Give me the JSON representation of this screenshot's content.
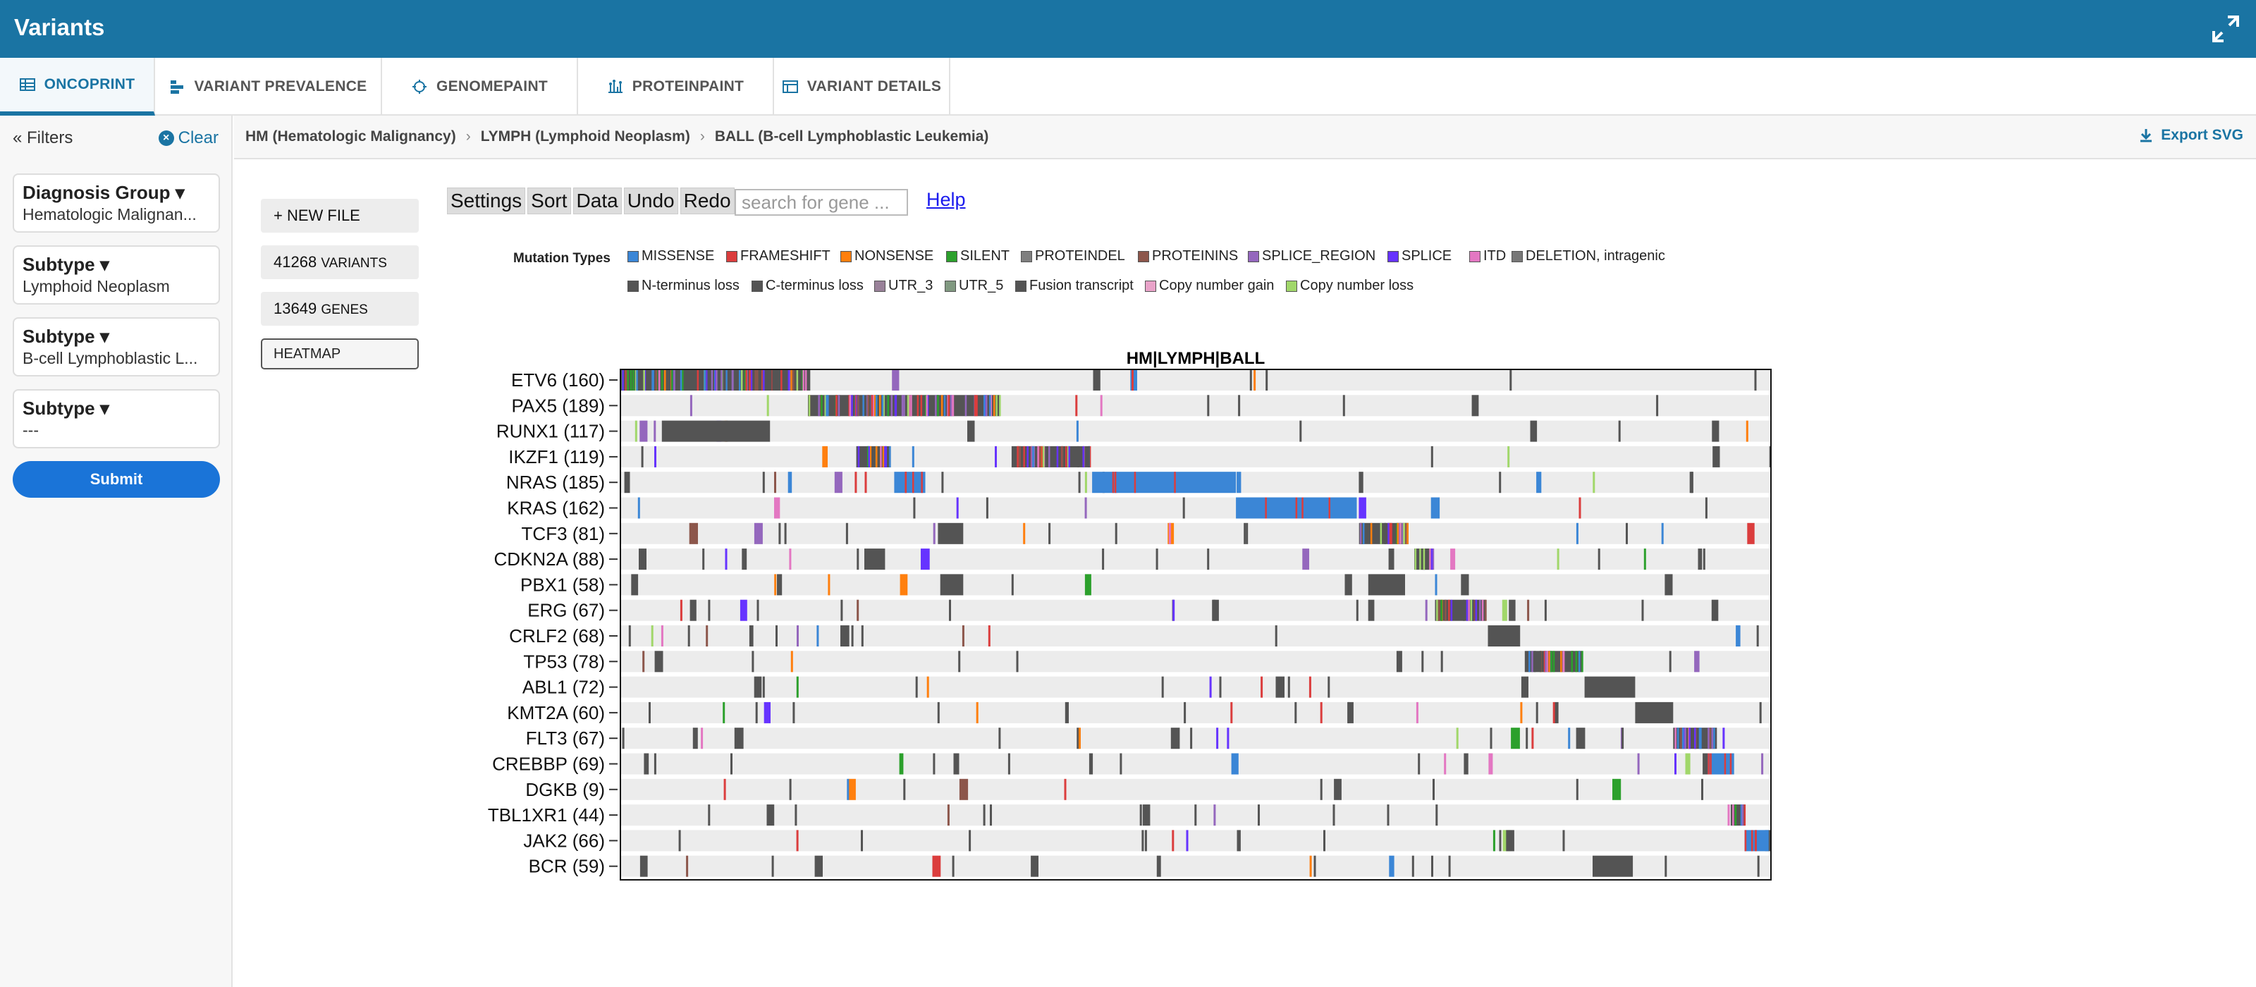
{
  "app": {
    "title": "Variants"
  },
  "tabs": [
    {
      "label": "ONCOPRINT",
      "icon": "table-icon"
    },
    {
      "label": "VARIANT PREVALENCE",
      "icon": "bar-icon"
    },
    {
      "label": "GENOMEPAINT",
      "icon": "genome-icon"
    },
    {
      "label": "PROTEINPAINT",
      "icon": "protein-icon"
    },
    {
      "label": "VARIANT DETAILS",
      "icon": "details-icon"
    }
  ],
  "sidebar": {
    "filters_label": "Filters",
    "clear_label": "Clear",
    "filters": [
      {
        "label": "Diagnosis Group",
        "value": "Hematologic Malignan..."
      },
      {
        "label": "Subtype",
        "value": "Lymphoid Neoplasm"
      },
      {
        "label": "Subtype",
        "value": "B-cell Lymphoblastic L..."
      },
      {
        "label": "Subtype",
        "value": "---"
      }
    ],
    "submit_label": "Submit"
  },
  "breadcrumb": {
    "items": [
      "HM (Hematologic Malignancy)",
      "LYMPH (Lymphoid Neoplasm)",
      "BALL (B-cell Lymphoblastic Leukemia)"
    ],
    "export_label": "Export SVG"
  },
  "panel": {
    "new_file": "+ NEW FILE",
    "variants_count": "41268",
    "variants_label": "VARIANTS",
    "genes_count": "13649",
    "genes_label": "GENES",
    "heatmap": "HEATMAP"
  },
  "toolbar": {
    "settings": "Settings",
    "sort": "Sort",
    "data": "Data",
    "undo": "Undo",
    "redo": "Redo",
    "search_placeholder": "search for gene ...",
    "help": "Help"
  },
  "legend": {
    "title": "Mutation Types",
    "items": [
      {
        "label": "MISSENSE",
        "color": "#3b86d6"
      },
      {
        "label": "FRAMESHIFT",
        "color": "#db3d3d"
      },
      {
        "label": "NONSENSE",
        "color": "#ff7f0e"
      },
      {
        "label": "SILENT",
        "color": "#2ca02c"
      },
      {
        "label": "PROTEINDEL",
        "color": "#7f7f7f"
      },
      {
        "label": "PROTEININS",
        "color": "#8c564b"
      },
      {
        "label": "SPLICE_REGION",
        "color": "#9467bd"
      },
      {
        "label": "SPLICE",
        "color": "#6633ff"
      },
      {
        "label": "ITD",
        "color": "#e377c2"
      },
      {
        "label": "DELETION, intragenic",
        "color": "#777777"
      },
      {
        "label": "N-terminus loss",
        "color": "#545454"
      },
      {
        "label": "C-terminus loss",
        "color": "#545454"
      },
      {
        "label": "UTR_3",
        "color": "#998199"
      },
      {
        "label": "UTR_5",
        "color": "#819981"
      },
      {
        "label": "Fusion transcript",
        "color": "#545454"
      },
      {
        "label": "Copy number gain",
        "color": "#e9a3c9"
      },
      {
        "label": "Copy number loss",
        "color": "#a1d76a"
      }
    ]
  },
  "chart_data": {
    "type": "heatmap",
    "title": "HM|LYMPH|BALL",
    "rows": [
      "ETV6 (160)",
      "PAX5 (189)",
      "RUNX1 (117)",
      "IKZF1 (119)",
      "NRAS (185)",
      "KRAS (162)",
      "TCF3 (81)",
      "CDKN2A (88)",
      "PBX1 (58)",
      "ERG (67)",
      "CRLF2 (68)",
      "TP53 (78)",
      "ABL1 (72)",
      "KMT2A (60)",
      "FLT3 (67)",
      "CREBBP (69)",
      "DGKB (9)",
      "TBL1XR1 (44)",
      "JAK2 (66)",
      "BCR (59)"
    ],
    "empty_color": "#ececec",
    "fusion_color": "#545454",
    "missense_color": "#3b86d6"
  }
}
